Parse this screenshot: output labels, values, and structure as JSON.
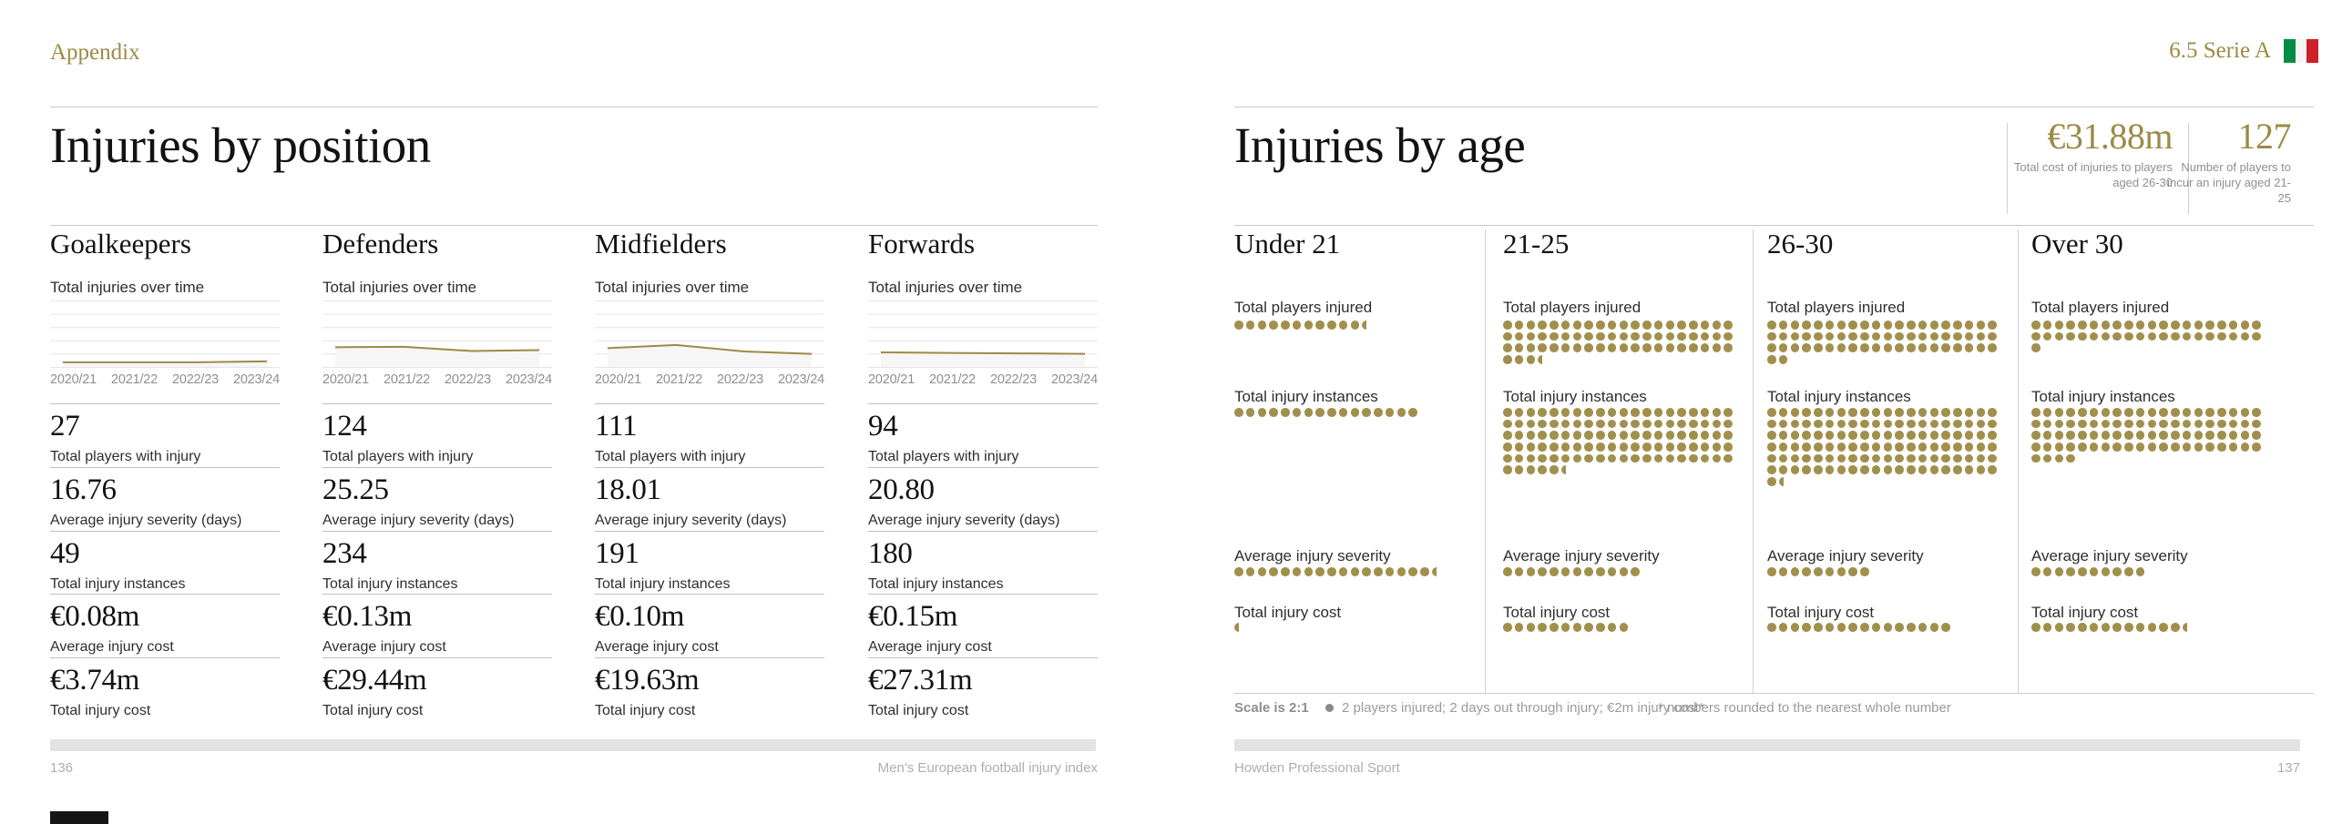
{
  "colors": {
    "accent_gold": "#9c8a46",
    "dot_gold": "#a1904d",
    "flag_green": "#008C45",
    "flag_white": "#F4F5F0",
    "flag_red": "#CD212A",
    "footer_bar": "#e3e3e3"
  },
  "left_page": {
    "eyebrow": "Appendix",
    "title": "Injuries by position",
    "spark_label": "Total injuries over time",
    "seasons": [
      "2020/21",
      "2021/22",
      "2022/23",
      "2023/24"
    ],
    "columns": [
      {
        "name": "Goalkeepers",
        "spark": [
          10,
          10,
          10,
          12
        ],
        "stats": [
          {
            "value": "27",
            "label": "Total players with injury"
          },
          {
            "value": "16.76",
            "label": "Average injury severity (days)"
          },
          {
            "value": "49",
            "label": "Total injury instances"
          },
          {
            "value": "€0.08m",
            "label": "Average injury cost"
          },
          {
            "value": "€3.74m",
            "label": "Total injury cost"
          }
        ]
      },
      {
        "name": "Defenders",
        "spark": [
          42,
          43,
          34,
          36
        ],
        "stats": [
          {
            "value": "124",
            "label": "Total players with injury"
          },
          {
            "value": "25.25",
            "label": "Average injury severity (days)"
          },
          {
            "value": "234",
            "label": "Total injury instances"
          },
          {
            "value": "€0.13m",
            "label": "Average injury cost"
          },
          {
            "value": "€29.44m",
            "label": "Total injury cost"
          }
        ]
      },
      {
        "name": "Midfielders",
        "spark": [
          40,
          47,
          33,
          28
        ],
        "stats": [
          {
            "value": "111",
            "label": "Total players with injury"
          },
          {
            "value": "18.01",
            "label": "Average injury severity (days)"
          },
          {
            "value": "191",
            "label": "Total injury instances"
          },
          {
            "value": "€0.10m",
            "label": "Average injury cost"
          },
          {
            "value": "€19.63m",
            "label": "Total injury cost"
          }
        ]
      },
      {
        "name": "Forwards",
        "spark": [
          31,
          30,
          29,
          28
        ],
        "stats": [
          {
            "value": "94",
            "label": "Total players with injury"
          },
          {
            "value": "20.80",
            "label": "Average injury severity (days)"
          },
          {
            "value": "180",
            "label": "Total injury instances"
          },
          {
            "value": "€0.15m",
            "label": "Average injury cost"
          },
          {
            "value": "€27.31m",
            "label": "Total injury cost"
          }
        ]
      }
    ],
    "footer": {
      "page_number": "136",
      "edition_label": "Men's European football injury index"
    }
  },
  "right_page": {
    "tag": "6.5 Serie A",
    "flag": "italy-flag",
    "title": "Injuries by age",
    "header_stats": [
      {
        "value": "€31.88m",
        "caption": "Total cost of injuries to players aged 26-30"
      },
      {
        "value": "127",
        "caption": "Number of players to incur an injury aged 21-25"
      }
    ],
    "row_labels": [
      "Total players injured",
      "Total injury instances",
      "Average injury severity",
      "Total injury cost"
    ],
    "dot_unit": 2,
    "columns": [
      {
        "name": "Under 21",
        "players": 23,
        "instances": 32,
        "severity": 35,
        "cost": 1
      },
      {
        "name": "21-25",
        "players": 127,
        "instances": 211,
        "severity": 24,
        "cost": 22
      },
      {
        "name": "26-30",
        "players": 124,
        "instances": 243,
        "severity": 18,
        "cost": 32
      },
      {
        "name": "Over 30",
        "players": 82,
        "instances": 168,
        "severity": 20,
        "cost": 27
      }
    ],
    "footnote": {
      "scale_label": "Scale is 2:1",
      "dot_legend": "2 players injured; 2 days out through injury; €2m injury cost*",
      "asterisk_note": "* numbers rounded to the nearest whole number"
    },
    "footer": {
      "brand": "Howden Professional Sport",
      "page_number": "137"
    }
  },
  "chart_data": [
    {
      "type": "line",
      "title": "Goalkeepers — Total injuries over time",
      "x": [
        "2020/21",
        "2021/22",
        "2022/23",
        "2023/24"
      ],
      "values": [
        10,
        10,
        10,
        12
      ],
      "note": "sparkline, y-axis unlabelled; relative estimated values",
      "grid": true
    },
    {
      "type": "line",
      "title": "Defenders — Total injuries over time",
      "x": [
        "2020/21",
        "2021/22",
        "2022/23",
        "2023/24"
      ],
      "values": [
        42,
        43,
        34,
        36
      ],
      "note": "sparkline, y-axis unlabelled; relative estimated values",
      "grid": true
    },
    {
      "type": "line",
      "title": "Midfielders — Total injuries over time",
      "x": [
        "2020/21",
        "2021/22",
        "2022/23",
        "2023/24"
      ],
      "values": [
        40,
        47,
        33,
        28
      ],
      "note": "sparkline, y-axis unlabelled; relative estimated values",
      "grid": true
    },
    {
      "type": "line",
      "title": "Forwards — Total injuries over time",
      "x": [
        "2020/21",
        "2021/22",
        "2022/23",
        "2023/24"
      ],
      "values": [
        31,
        30,
        29,
        28
      ],
      "note": "sparkline, y-axis unlabelled; relative estimated values",
      "grid": true
    },
    {
      "type": "heatmap",
      "subtype": "dot-matrix-pictogram",
      "title": "Injuries by age",
      "scale": "1 dot = 2 units (players / days / €m), wrap 20 per row",
      "categories": [
        "Under 21",
        "21-25",
        "26-30",
        "Over 30"
      ],
      "series": [
        {
          "name": "Total players injured",
          "values": [
            23,
            127,
            124,
            82
          ]
        },
        {
          "name": "Total injury instances",
          "values": [
            32,
            211,
            243,
            168
          ]
        },
        {
          "name": "Average injury severity (days)",
          "values": [
            35,
            24,
            18,
            20
          ]
        },
        {
          "name": "Total injury cost (€m)",
          "values": [
            1,
            22,
            32,
            27
          ]
        }
      ]
    }
  ]
}
